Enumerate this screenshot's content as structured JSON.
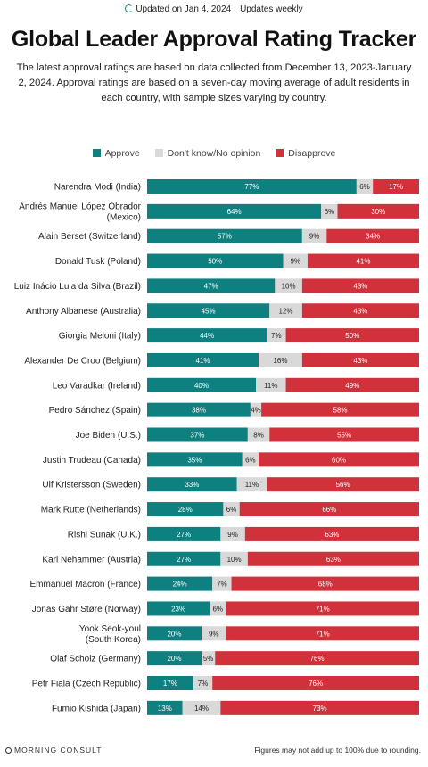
{
  "header": {
    "updated": "Updated on Jan 4, 2024",
    "frequency": "Updates weekly",
    "title": "Global Leader Approval Rating Tracker",
    "subtitle": "The latest approval ratings are based on data collected from December 13, 2023-January 2, 2024. Approval ratings are based on a seven-day moving average of adult residents in each country, with sample sizes varying by country."
  },
  "legend": [
    {
      "label": "Approve",
      "color": "#0e8080"
    },
    {
      "label": "Don't know/No opinion",
      "color": "#d9d9d9"
    },
    {
      "label": "Disapprove",
      "color": "#d0313b"
    }
  ],
  "footer": {
    "brand": "MORNING CONSULT",
    "note": "Figures may not add up to 100% due to rounding."
  },
  "chart_data": {
    "type": "bar",
    "orientation": "horizontal",
    "stacked": true,
    "categories": [
      [
        "Narendra Modi (India)"
      ],
      [
        "Andrés Manuel López Obrador",
        "(Mexico)"
      ],
      [
        "Alain Berset (Switzerland)"
      ],
      [
        "Donald Tusk (Poland)"
      ],
      [
        "Luiz Inácio Lula da Silva (Brazil)"
      ],
      [
        "Anthony Albanese (Australia)"
      ],
      [
        "Giorgia Meloni (Italy)"
      ],
      [
        "Alexander De Croo (Belgium)"
      ],
      [
        "Leo Varadkar (Ireland)"
      ],
      [
        "Pedro Sánchez (Spain)"
      ],
      [
        "Joe Biden (U.S.)"
      ],
      [
        "Justin Trudeau (Canada)"
      ],
      [
        "Ulf Kristersson (Sweden)"
      ],
      [
        "Mark Rutte (Netherlands)"
      ],
      [
        "Rishi Sunak (U.K.)"
      ],
      [
        "Karl Nehammer (Austria)"
      ],
      [
        "Emmanuel Macron (France)"
      ],
      [
        "Jonas Gahr Støre (Norway)"
      ],
      [
        "Yook Seok-youl",
        "(South Korea)"
      ],
      [
        "Olaf Scholz (Germany)"
      ],
      [
        "Petr Fiala (Czech Republic)"
      ],
      [
        "Fumio Kishida (Japan)"
      ]
    ],
    "series": [
      {
        "name": "Approve",
        "color": "#0e8080",
        "values": [
          77,
          64,
          57,
          50,
          47,
          45,
          44,
          41,
          40,
          38,
          37,
          35,
          33,
          28,
          27,
          27,
          24,
          23,
          20,
          20,
          17,
          13
        ]
      },
      {
        "name": "Don't know/No opinion",
        "color": "#d9d9d9",
        "values": [
          6,
          6,
          9,
          9,
          10,
          12,
          7,
          16,
          11,
          4,
          8,
          6,
          11,
          6,
          9,
          10,
          7,
          6,
          9,
          5,
          7,
          14
        ]
      },
      {
        "name": "Disapprove",
        "color": "#d0313b",
        "values": [
          17,
          30,
          34,
          41,
          43,
          43,
          50,
          43,
          49,
          58,
          55,
          60,
          56,
          66,
          63,
          63,
          68,
          71,
          71,
          76,
          76,
          73
        ]
      }
    ],
    "value_suffix": "%",
    "xlim": [
      0,
      100
    ],
    "legend_position": "top"
  }
}
